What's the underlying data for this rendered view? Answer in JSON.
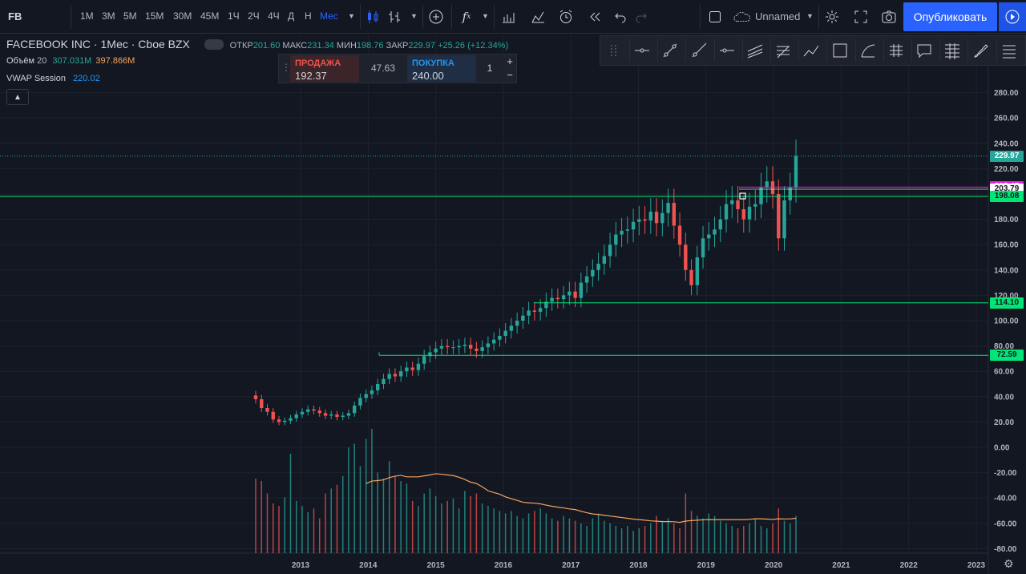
{
  "toolbar": {
    "symbol": "FB",
    "intervals": [
      "1М",
      "3М",
      "5М",
      "15М",
      "30М",
      "45М",
      "1Ч",
      "2Ч",
      "4Ч",
      "Д",
      "Н",
      "Мес"
    ],
    "active_interval": "Мес",
    "layout_name": "Unnamed",
    "publish_label": "Опубликовать"
  },
  "legend": {
    "title": "FACEBOOK INC · 1Мес · Cboe BZX",
    "open_label": "ОТКР",
    "open": "201.60",
    "high_label": "МАКС",
    "high": "231.34",
    "low_label": "МИН",
    "low": "198.76",
    "close_label": "ЗАКР",
    "close": "229.97",
    "change": "+25.26 (+12.34%)",
    "volume_label": "Объём",
    "volume_length": "20",
    "volume_value": "307.031M",
    "volume_ma": "397.866M",
    "vwap_label": "VWAP Session",
    "vwap_value": "220.02"
  },
  "trade": {
    "sell_label": "ПРОДАЖА",
    "sell_price": "192.37",
    "spread": "47.63",
    "buy_label": "ПОКУПКА",
    "buy_price": "240.00",
    "quantity": "1"
  },
  "drawing_tools": [
    "drag-handle",
    "horizontal-line",
    "trend-line",
    "ray",
    "horizontal-ray",
    "parallel-channel",
    "regression-trend",
    "path",
    "rectangle",
    "curve",
    "pitchfork",
    "callout",
    "fib-retracement",
    "brush",
    "menu"
  ],
  "colors": {
    "up": "#26a69a",
    "down": "#ef5350",
    "level": "#00e676",
    "magenta": "#e91ee6",
    "ma": "#f7a35c",
    "accent": "#2962ff"
  },
  "chart_data": {
    "type": "candlestick",
    "x_ticks": [
      "2013",
      "2014",
      "2015",
      "2016",
      "2017",
      "2018",
      "2019",
      "2020",
      "2021",
      "2022",
      "2023"
    ],
    "y_ticks": [
      -80,
      -60,
      -40,
      -20,
      0,
      20,
      40,
      60,
      80,
      100,
      120,
      140,
      160,
      180,
      200,
      220,
      240,
      260,
      280
    ],
    "price_labels": [
      {
        "value": "229.97",
        "color": "#26a69a"
      },
      {
        "value": "205.47",
        "color": "#e91ee6"
      },
      {
        "value": "203.79",
        "color": "#ffffff"
      },
      {
        "value": "198.08",
        "color": "#00e676"
      },
      {
        "value": "114.10",
        "color": "#00e676"
      },
      {
        "value": "72.59",
        "color": "#00e676"
      }
    ],
    "levels": [
      198.08,
      114.1,
      72.59,
      229.97
    ],
    "candles_close": [
      38,
      31,
      28,
      22,
      20,
      21,
      23,
      26,
      28,
      30,
      29,
      27,
      25,
      26,
      24,
      25,
      27,
      33,
      39,
      42,
      45,
      50,
      54,
      58,
      56,
      60,
      63,
      61,
      66,
      72,
      75,
      78,
      80,
      79,
      79,
      80,
      81,
      78,
      76,
      79,
      82,
      85,
      88,
      92,
      96,
      100,
      104,
      108,
      107,
      110,
      115,
      118,
      117,
      120,
      123,
      118,
      130,
      135,
      140,
      145,
      151,
      160,
      168,
      171,
      172,
      178,
      180,
      179,
      186,
      177,
      185,
      193,
      175,
      160,
      140,
      128,
      150,
      165,
      168,
      172,
      180,
      192,
      195,
      188,
      180,
      190,
      192,
      205,
      210,
      200,
      165,
      195,
      205,
      230
    ],
    "volume": [
      60,
      58,
      48,
      40,
      38,
      45,
      80,
      42,
      38,
      33,
      36,
      28,
      48,
      52,
      55,
      62,
      85,
      88,
      70,
      92,
      100,
      65,
      60,
      74,
      62,
      58,
      56,
      42,
      38,
      48,
      52,
      46,
      40,
      42,
      44,
      36,
      50,
      46,
      48,
      40,
      38,
      36,
      34,
      32,
      34,
      30,
      28,
      32,
      34,
      36,
      32,
      28,
      26,
      30,
      28,
      26,
      24,
      22,
      28,
      32,
      26,
      24,
      22,
      20,
      22,
      18,
      20,
      22,
      24,
      30,
      26,
      28,
      24,
      20,
      48,
      34,
      30,
      28,
      32,
      30,
      26,
      24,
      22,
      20,
      22,
      24,
      28,
      22,
      20,
      24,
      36,
      26,
      24,
      30
    ],
    "volume_ma": [
      null,
      null,
      null,
      null,
      null,
      null,
      null,
      null,
      null,
      null,
      null,
      null,
      null,
      null,
      null,
      null,
      null,
      null,
      null,
      null,
      null,
      null,
      null,
      null,
      null,
      null,
      null,
      null,
      null,
      null,
      null,
      null,
      null,
      null,
      null,
      null,
      null,
      null,
      null,
      null,
      null,
      null,
      null,
      null,
      null,
      null,
      null,
      null,
      null,
      null,
      null,
      null,
      null,
      null,
      null,
      null,
      null,
      null,
      null,
      null,
      null,
      null,
      null,
      null,
      null,
      null,
      null,
      null,
      null,
      null,
      null,
      null,
      null,
      null,
      null,
      null,
      null,
      null,
      null,
      null,
      null,
      null,
      null,
      null,
      null,
      null,
      null,
      null,
      null,
      null,
      null,
      null,
      null,
      null
    ]
  }
}
